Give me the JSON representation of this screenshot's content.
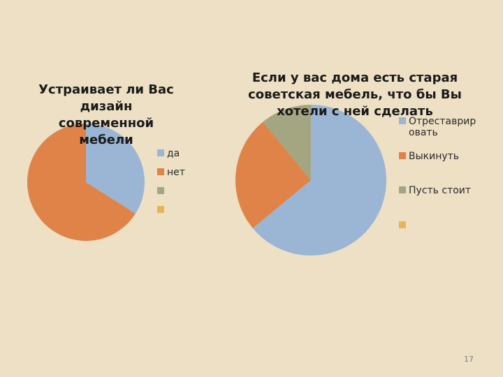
{
  "page_number": "17",
  "chart_data": [
    {
      "type": "pie",
      "title_lines": [
        "Устраивает ли Вас",
        "дизайн",
        "современной",
        "мебели"
      ],
      "categories": [
        "да",
        "нет",
        "",
        ""
      ],
      "values": [
        34,
        66,
        0,
        0
      ],
      "colors": [
        "#9bb5d4",
        "#e08348",
        "#a3a680",
        "#e7b45a"
      ],
      "legend": "right"
    },
    {
      "type": "pie",
      "title_lines": [
        "Если у вас дома есть старая",
        "советская мебель, что бы Вы",
        "хотели с ней сделать"
      ],
      "categories": [
        "Отреставрировать",
        "Выкинуть",
        "Пусть стоит",
        ""
      ],
      "legend_label_lines": [
        [
          "Отреставрир",
          "овать"
        ],
        [
          "Выкинуть"
        ],
        [
          "Пусть стоит"
        ],
        [
          ""
        ]
      ],
      "values": [
        64,
        25,
        11,
        0
      ],
      "colors": [
        "#9bb5d4",
        "#e08348",
        "#a3a680",
        "#e7b45a"
      ],
      "legend": "right"
    }
  ]
}
